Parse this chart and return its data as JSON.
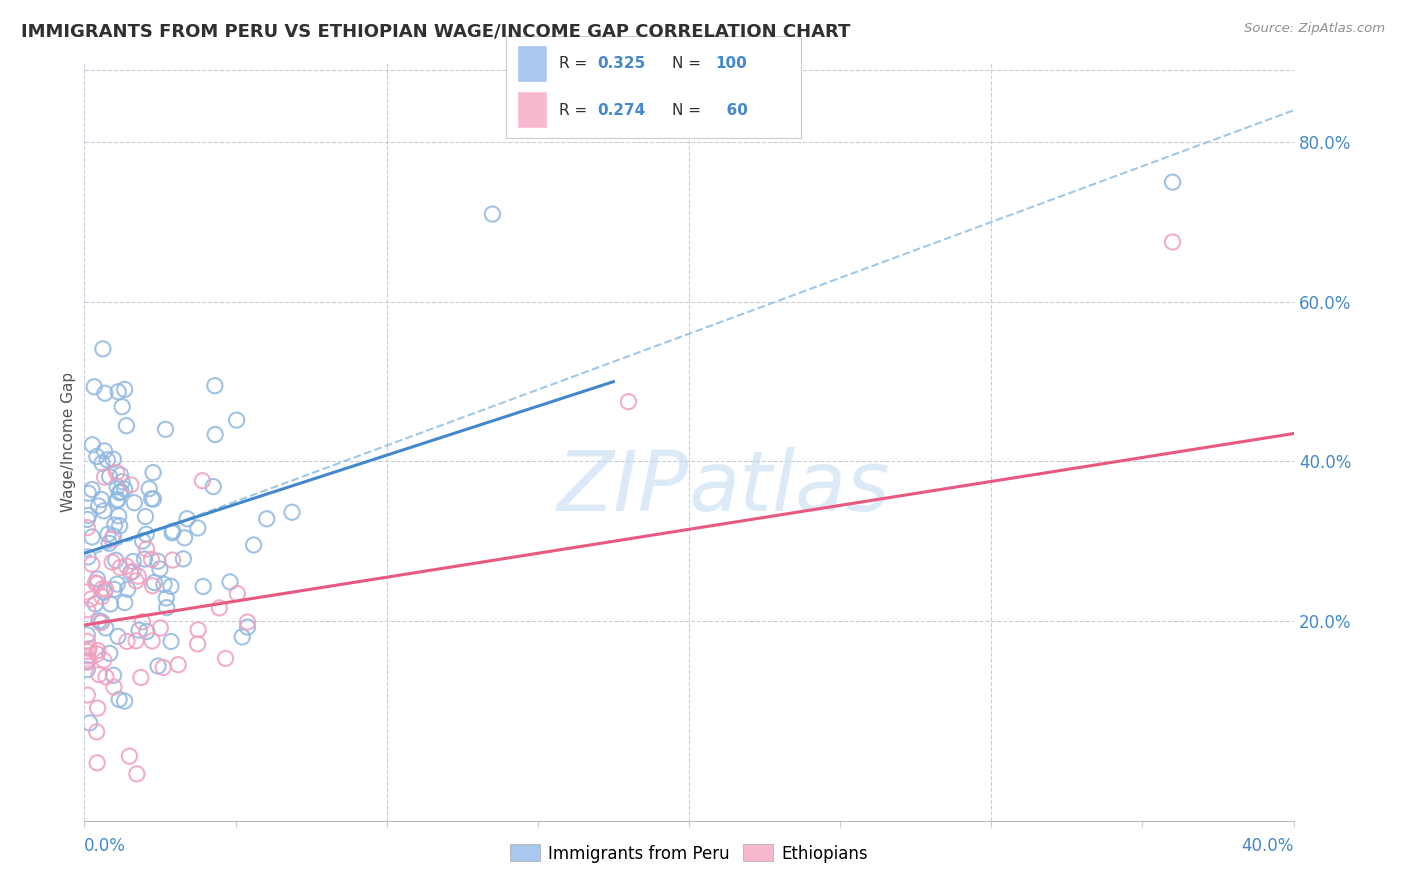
{
  "title": "IMMIGRANTS FROM PERU VS ETHIOPIAN WAGE/INCOME GAP CORRELATION CHART",
  "source": "Source: ZipAtlas.com",
  "ylabel": "Wage/Income Gap",
  "y_tick_labels": [
    "20.0%",
    "40.0%",
    "60.0%",
    "80.0%"
  ],
  "y_tick_values": [
    0.2,
    0.4,
    0.6,
    0.8
  ],
  "xmin": 0.0,
  "xmax": 0.4,
  "ymin": -0.05,
  "ymax": 0.9,
  "scatter_blue_color": "#90b8e0",
  "scatter_pink_color": "#f0a0c0",
  "line_blue_color": "#4488cc",
  "line_pink_color": "#e85880",
  "line_dash_color": "#a0c8e8",
  "background_color": "#ffffff",
  "grid_color": "#ccccdd",
  "title_color": "#303030",
  "source_color": "#909090",
  "axis_label_color": "#4488cc",
  "legend_text_color": "#303030",
  "legend_val_color": "#4488cc",
  "legend_box1_color": "#a8c8f0",
  "legend_box2_color": "#f8b8cc",
  "watermark_color": "#c0d8f0",
  "blue_line_x0": 0.0,
  "blue_line_x1": 0.175,
  "blue_line_y0": 0.285,
  "blue_line_y1": 0.5,
  "pink_line_x0": 0.0,
  "pink_line_x1": 0.4,
  "pink_line_y0": 0.195,
  "pink_line_y1": 0.435,
  "dash_line_x0": 0.0,
  "dash_line_x1": 0.4,
  "dash_line_y0": 0.28,
  "dash_line_y1": 0.84
}
